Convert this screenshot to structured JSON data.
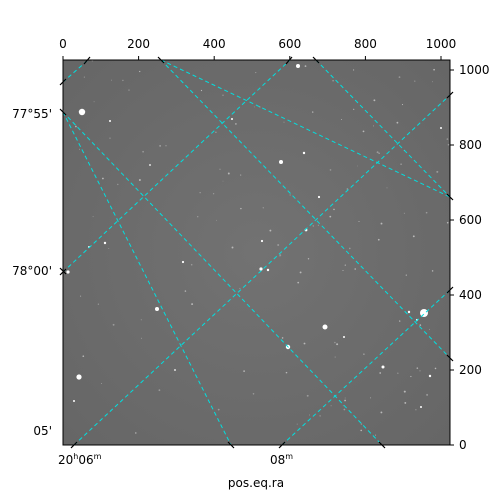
{
  "image": {
    "kind": "astronomical-image",
    "colormap": "grayscale",
    "background_color": "#6e6e6e"
  },
  "grid": {
    "color": "#00e0e0",
    "style": "dashed"
  },
  "pixel_axes": {
    "top_ticks": [
      "0",
      "200",
      "400",
      "600",
      "800",
      "1000"
    ],
    "right_ticks": [
      "0",
      "200",
      "400",
      "600",
      "800",
      "1000"
    ]
  },
  "world_axes": {
    "xlabel": "pos.eq.ra",
    "ra_ticks": [
      {
        "label": "20h06m",
        "value": "20h06m"
      },
      {
        "label": "08m",
        "value": "08m"
      }
    ],
    "dec_ticks": [
      {
        "label": "77°55'",
        "value": "77°55'"
      },
      {
        "label": "78°00'",
        "value": "78°00'"
      },
      {
        "label": "05'",
        "value": "05'"
      }
    ]
  },
  "ra_tick_text": {
    "t0_main": "20",
    "t0_h": "h",
    "t0_min": "06",
    "t0_m": "m",
    "t1_min": "08",
    "t1_m": "m"
  }
}
